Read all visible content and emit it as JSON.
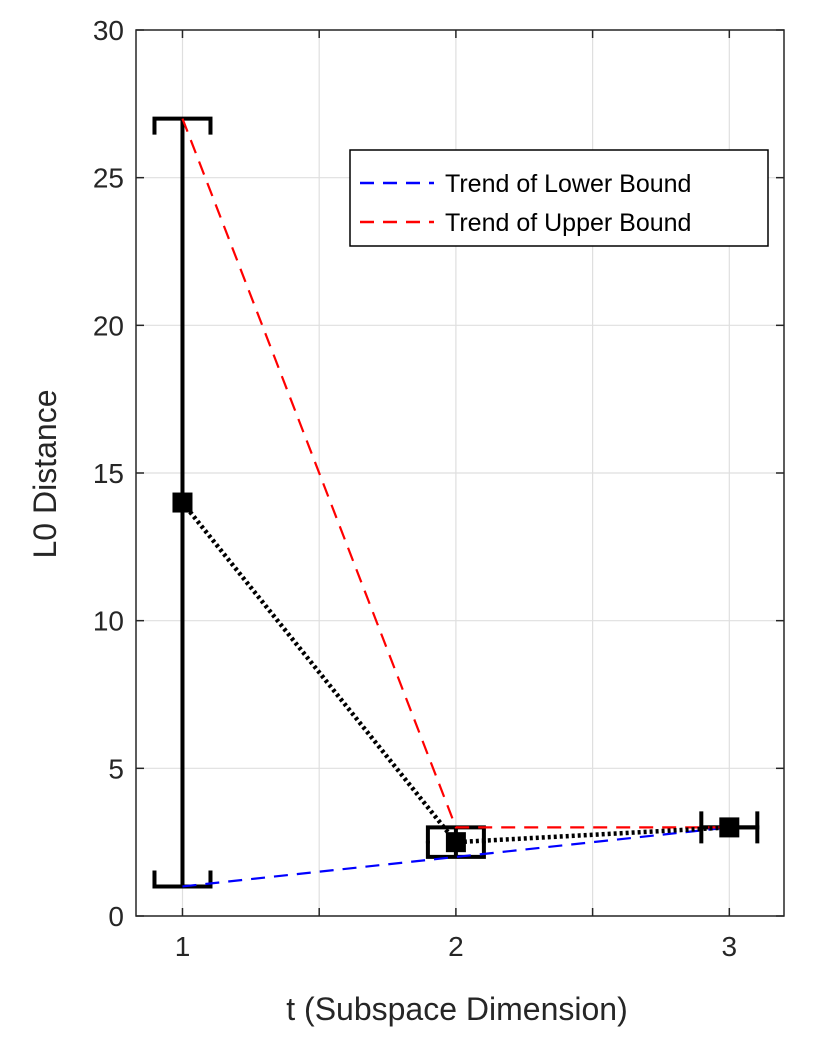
{
  "chart_data": {
    "type": "line",
    "title": "",
    "xlabel": "t (Subspace Dimension)",
    "ylabel": "L0 Distance",
    "xlim": [
      0.83,
      3.2
    ],
    "ylim": [
      0,
      30
    ],
    "xticks": [
      1,
      1.5,
      2,
      2.5,
      3
    ],
    "xtick_labels": [
      "1",
      "",
      "2",
      "",
      "3"
    ],
    "yticks": [
      0,
      5,
      10,
      15,
      20,
      25,
      30
    ],
    "ytick_labels": [
      "0",
      "5",
      "10",
      "15",
      "20",
      "25",
      "30"
    ],
    "grid": true,
    "legend_position": "top-right",
    "x": [
      1,
      2,
      3
    ],
    "series": [
      {
        "name": "Trend of Lower Bound",
        "style": "dashed",
        "color": "#0000ff",
        "values": [
          1,
          2,
          3
        ]
      },
      {
        "name": "Trend of Upper Bound",
        "style": "dashed",
        "color": "#ff0000",
        "values": [
          27,
          3,
          3
        ]
      }
    ],
    "mean": {
      "style": "dotted",
      "color": "#000000",
      "marker": "square",
      "values": [
        14,
        2.5,
        3
      ]
    },
    "error_bars": {
      "color": "#000000",
      "lower": [
        1,
        2,
        3
      ],
      "upper": [
        27,
        3,
        3
      ]
    }
  }
}
